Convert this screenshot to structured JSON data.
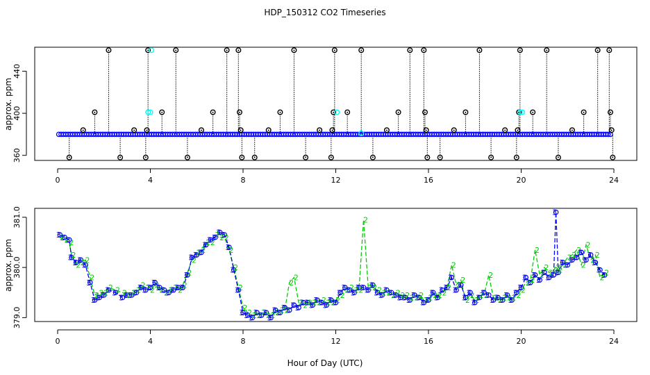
{
  "title": "HDP_150312  CO2 Timeseries",
  "xlabel": "Hour of Day (UTC)",
  "colors": {
    "ch1": "#000000",
    "ch2": "#00ffff",
    "ch3": "#0000ff",
    "line2": "#00cc00",
    "line3": "#0000ff",
    "pt2": "#00cc00",
    "pt3": "#0000cc"
  },
  "chart_data": [
    {
      "type": "scatter",
      "name": "raw",
      "ylabel": "approx. ppm",
      "xlim": [
        0,
        24
      ],
      "ylim": [
        356.5,
        461.5
      ],
      "xticks": [
        0,
        4,
        8,
        12,
        16,
        20,
        24
      ],
      "yticks": [
        360,
        400,
        440
      ],
      "baseline": 380,
      "spikes": [
        {
          "x": 0.5,
          "y": 358
        },
        {
          "x": 1.1,
          "y": 384
        },
        {
          "x": 1.6,
          "y": 401
        },
        {
          "x": 2.2,
          "y": 460
        },
        {
          "x": 2.7,
          "y": 358
        },
        {
          "x": 3.3,
          "y": 384
        },
        {
          "x": 3.8,
          "y": 358
        },
        {
          "x": 3.85,
          "y": 384
        },
        {
          "x": 3.9,
          "y": 460
        },
        {
          "x": 4.5,
          "y": 401
        },
        {
          "x": 5.1,
          "y": 460
        },
        {
          "x": 5.6,
          "y": 358
        },
        {
          "x": 6.2,
          "y": 384
        },
        {
          "x": 6.7,
          "y": 401
        },
        {
          "x": 7.3,
          "y": 460
        },
        {
          "x": 7.8,
          "y": 460
        },
        {
          "x": 7.85,
          "y": 401
        },
        {
          "x": 7.9,
          "y": 384
        },
        {
          "x": 7.95,
          "y": 358
        },
        {
          "x": 8.5,
          "y": 358
        },
        {
          "x": 9.1,
          "y": 384
        },
        {
          "x": 9.6,
          "y": 401
        },
        {
          "x": 10.2,
          "y": 460
        },
        {
          "x": 10.7,
          "y": 358
        },
        {
          "x": 11.3,
          "y": 384
        },
        {
          "x": 11.8,
          "y": 358
        },
        {
          "x": 11.85,
          "y": 384
        },
        {
          "x": 11.9,
          "y": 401
        },
        {
          "x": 11.95,
          "y": 460
        },
        {
          "x": 12.5,
          "y": 401
        },
        {
          "x": 13.1,
          "y": 460
        },
        {
          "x": 13.6,
          "y": 358
        },
        {
          "x": 14.2,
          "y": 384
        },
        {
          "x": 14.7,
          "y": 401
        },
        {
          "x": 15.2,
          "y": 460
        },
        {
          "x": 15.8,
          "y": 460
        },
        {
          "x": 15.85,
          "y": 401
        },
        {
          "x": 15.9,
          "y": 384
        },
        {
          "x": 15.95,
          "y": 358
        },
        {
          "x": 16.5,
          "y": 358
        },
        {
          "x": 17.1,
          "y": 384
        },
        {
          "x": 17.6,
          "y": 401
        },
        {
          "x": 18.2,
          "y": 460
        },
        {
          "x": 18.7,
          "y": 358
        },
        {
          "x": 19.3,
          "y": 384
        },
        {
          "x": 19.8,
          "y": 358
        },
        {
          "x": 19.85,
          "y": 384
        },
        {
          "x": 19.9,
          "y": 401
        },
        {
          "x": 19.95,
          "y": 460
        },
        {
          "x": 20.5,
          "y": 401
        },
        {
          "x": 21.1,
          "y": 460
        },
        {
          "x": 21.6,
          "y": 358
        },
        {
          "x": 22.2,
          "y": 384
        },
        {
          "x": 22.7,
          "y": 401
        },
        {
          "x": 23.3,
          "y": 460
        },
        {
          "x": 23.8,
          "y": 460
        },
        {
          "x": 23.85,
          "y": 401
        },
        {
          "x": 23.9,
          "y": 384
        },
        {
          "x": 23.95,
          "y": 358
        }
      ],
      "cyan_points": [
        {
          "x": 3.9,
          "y": 401
        },
        {
          "x": 4.0,
          "y": 401
        },
        {
          "x": 4.05,
          "y": 460
        },
        {
          "x": 12.05,
          "y": 401
        },
        {
          "x": 19.95,
          "y": 401
        },
        {
          "x": 20.05,
          "y": 401
        },
        {
          "x": 13.1,
          "y": 381
        }
      ]
    },
    {
      "type": "line",
      "name": "smoothed",
      "ylabel": "approx. ppm",
      "xlim": [
        0,
        24
      ],
      "ylim": [
        378.95,
        381.15
      ],
      "xticks": [
        0,
        4,
        8,
        12,
        16,
        20,
        24
      ],
      "yticks": [
        379.0,
        380.0,
        381.0
      ],
      "ytick_labels": [
        "379.0",
        "380.0",
        "381.0"
      ],
      "series": [
        {
          "name": "2",
          "marker": "2"
        },
        {
          "name": "3",
          "marker": "3"
        }
      ],
      "x": [
        0.1,
        0.3,
        0.5,
        0.6,
        0.8,
        1.0,
        1.2,
        1.4,
        1.6,
        1.8,
        2.0,
        2.2,
        2.5,
        2.8,
        3.0,
        3.2,
        3.4,
        3.6,
        3.8,
        4.0,
        4.2,
        4.4,
        4.6,
        4.8,
        5.0,
        5.2,
        5.4,
        5.6,
        5.8,
        6.0,
        6.2,
        6.4,
        6.6,
        6.8,
        7.0,
        7.2,
        7.4,
        7.6,
        7.8,
        8.0,
        8.2,
        8.4,
        8.6,
        8.8,
        9.0,
        9.2,
        9.4,
        9.6,
        9.8,
        10.0,
        10.2,
        10.4,
        10.6,
        10.8,
        11.0,
        11.2,
        11.4,
        11.6,
        11.8,
        12.0,
        12.2,
        12.4,
        12.6,
        12.8,
        13.0,
        13.2,
        13.4,
        13.6,
        13.8,
        14.0,
        14.2,
        14.4,
        14.6,
        14.8,
        15.0,
        15.2,
        15.4,
        15.6,
        15.8,
        16.0,
        16.2,
        16.4,
        16.6,
        16.8,
        17.0,
        17.2,
        17.4,
        17.6,
        17.8,
        18.0,
        18.2,
        18.4,
        18.6,
        18.8,
        19.0,
        19.2,
        19.4,
        19.6,
        19.8,
        20.0,
        20.2,
        20.4,
        20.6,
        20.8,
        21.0,
        21.2,
        21.4,
        21.5,
        21.6,
        21.8,
        22.0,
        22.2,
        22.4,
        22.6,
        22.8,
        23.0,
        23.2,
        23.4,
        23.6
      ],
      "values_3": [
        380.65,
        380.6,
        380.55,
        380.2,
        380.1,
        380.15,
        380.05,
        379.7,
        379.35,
        379.4,
        379.45,
        379.55,
        379.5,
        379.4,
        379.45,
        379.45,
        379.5,
        379.6,
        379.55,
        379.6,
        379.7,
        379.6,
        379.55,
        379.5,
        379.55,
        379.6,
        379.6,
        379.85,
        380.2,
        380.25,
        380.3,
        380.45,
        380.55,
        380.6,
        380.7,
        380.65,
        380.4,
        379.95,
        379.55,
        379.1,
        379.05,
        379.0,
        379.1,
        379.05,
        379.1,
        379.0,
        379.15,
        379.1,
        379.2,
        379.15,
        379.25,
        379.2,
        379.3,
        379.3,
        379.25,
        379.35,
        379.3,
        379.25,
        379.35,
        379.3,
        379.5,
        379.6,
        379.55,
        379.5,
        379.6,
        379.6,
        379.55,
        379.65,
        379.5,
        379.45,
        379.55,
        379.5,
        379.45,
        379.4,
        379.4,
        379.35,
        379.45,
        379.4,
        379.3,
        379.35,
        379.5,
        379.4,
        379.55,
        379.6,
        379.8,
        379.55,
        379.65,
        379.4,
        379.5,
        379.3,
        379.4,
        379.5,
        379.45,
        379.35,
        379.4,
        379.35,
        379.45,
        379.35,
        379.5,
        379.6,
        379.8,
        379.7,
        379.85,
        379.75,
        379.9,
        379.8,
        379.85,
        381.1,
        379.9,
        380.1,
        380.05,
        380.15,
        380.2,
        380.3,
        380.15,
        380.25,
        380.1,
        379.95,
        379.85
      ],
      "values_2": [
        380.6,
        380.55,
        380.5,
        380.25,
        380.05,
        380.1,
        380.15,
        379.8,
        379.45,
        379.5,
        379.5,
        379.6,
        379.55,
        379.5,
        379.45,
        379.5,
        379.55,
        379.65,
        379.6,
        379.55,
        379.65,
        379.55,
        379.5,
        379.55,
        379.6,
        379.55,
        379.65,
        379.9,
        380.15,
        380.3,
        380.35,
        380.5,
        380.5,
        380.65,
        380.6,
        380.6,
        380.35,
        380.0,
        379.6,
        379.2,
        379.1,
        379.05,
        379.05,
        379.1,
        379.05,
        379.05,
        379.1,
        379.15,
        379.15,
        379.7,
        379.8,
        379.3,
        379.25,
        379.3,
        379.3,
        379.3,
        379.35,
        379.3,
        379.3,
        379.35,
        379.45,
        379.55,
        379.6,
        379.55,
        379.55,
        380.95,
        379.6,
        379.6,
        379.55,
        379.5,
        379.5,
        379.45,
        379.5,
        379.45,
        379.45,
        379.4,
        379.4,
        379.45,
        379.35,
        379.4,
        379.45,
        379.45,
        379.5,
        379.6,
        380.05,
        379.65,
        379.75,
        379.35,
        379.45,
        379.35,
        379.45,
        379.45,
        379.85,
        379.4,
        379.35,
        379.4,
        379.4,
        379.4,
        379.45,
        379.55,
        379.7,
        379.75,
        380.35,
        379.85,
        380.0,
        379.9,
        379.95,
        380.0,
        379.95,
        380.05,
        380.2,
        380.25,
        380.35,
        380.05,
        380.45,
        380.15,
        380.25,
        379.8,
        379.9
      ]
    }
  ]
}
